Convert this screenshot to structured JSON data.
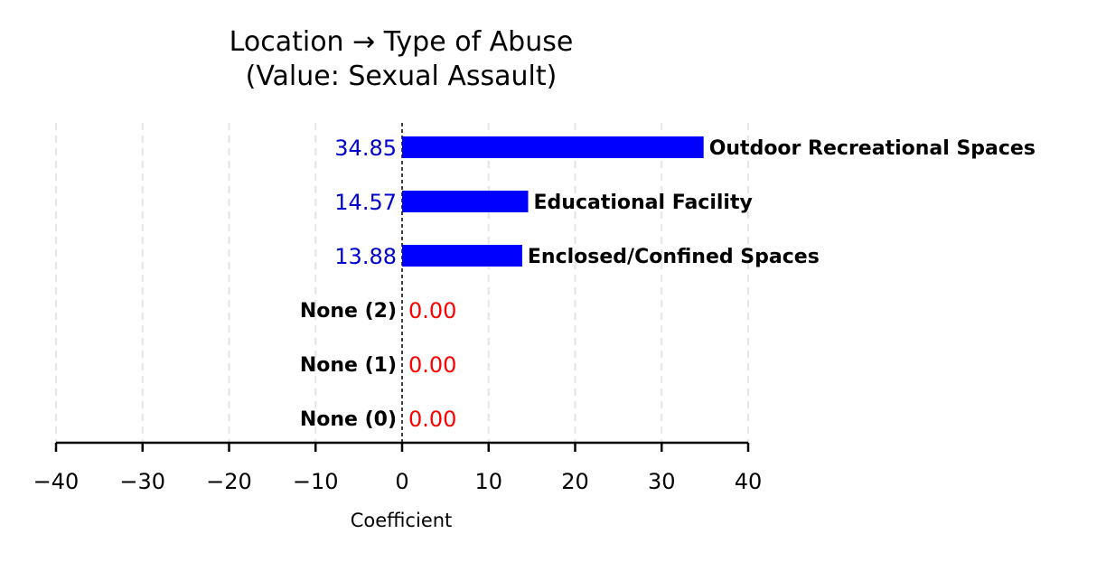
{
  "chart_data": {
    "type": "bar",
    "orientation": "horizontal",
    "title": "Location → Type of Abuse",
    "subtitle": "(Value: Sexual Assault)",
    "xlabel": "Coefficient",
    "ylabel": "",
    "xlim": [
      -40,
      40
    ],
    "xticks": [
      -40,
      -30,
      -20,
      -10,
      0,
      10,
      20,
      30,
      40
    ],
    "xtick_labels": [
      "−40",
      "−30",
      "−20",
      "−10",
      "0",
      "10",
      "20",
      "30",
      "40"
    ],
    "grid": "vertical dashed",
    "zero_line": "dashed",
    "categories": [
      "Outdoor Recreational Spaces",
      "Educational Facility",
      "Enclosed/Confined Spaces",
      "None (2)",
      "None (1)",
      "None (0)"
    ],
    "values": [
      34.85,
      14.57,
      13.88,
      0.0,
      0.0,
      0.0
    ],
    "value_labels": [
      "34.85",
      "14.57",
      "13.88",
      "0.00",
      "0.00",
      "0.00"
    ],
    "colors": {
      "positive_bar": "#0000ff",
      "positive_label": "#0000cc",
      "zero_label": "#ff0000",
      "grid": "#e6e6e6",
      "axis": "#000000"
    }
  }
}
